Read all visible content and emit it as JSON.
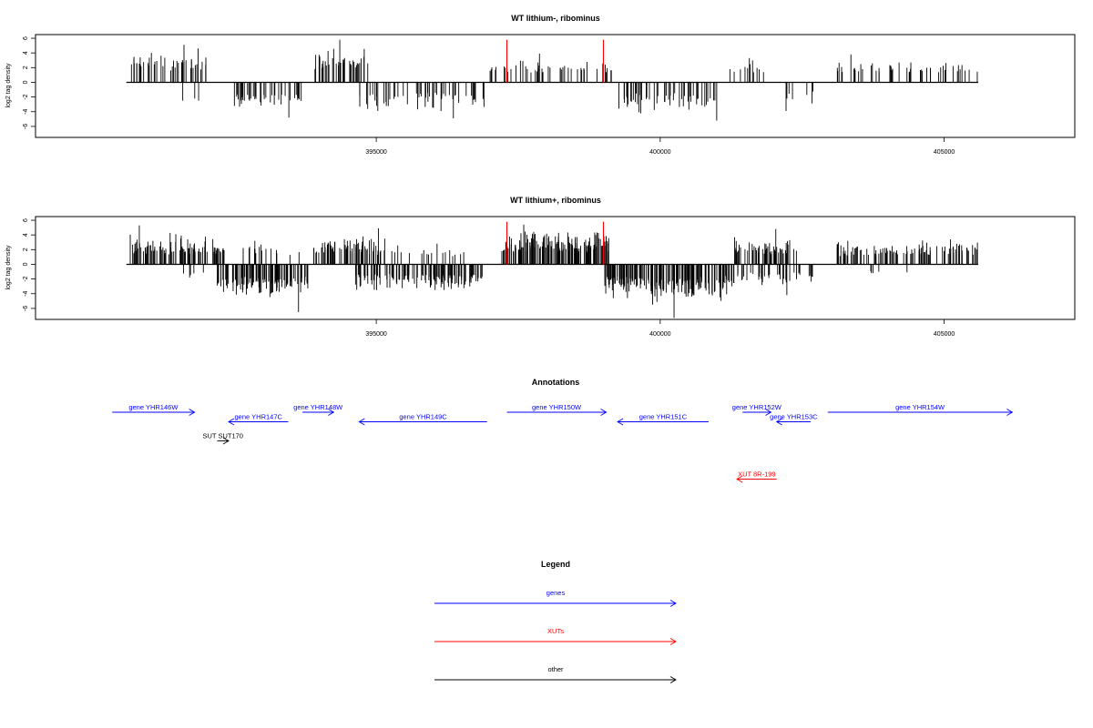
{
  "chart_data": [
    {
      "type": "bar",
      "title": "WT lithium-, ribominus",
      "ylabel": "log2 tag density",
      "ylim": [
        -7.5,
        6.5
      ],
      "xlim": [
        389000,
        407300
      ],
      "y_ticks": [
        "6",
        "4",
        "2",
        "0",
        "-2",
        "-4",
        "-6"
      ],
      "x_ticks": [
        "395000",
        "400000",
        "405000"
      ],
      "baseline_range": [
        390600,
        405600
      ],
      "colors": {
        "bars": "#000000",
        "markers": "#ff0000"
      },
      "markers": [
        397300,
        399000
      ],
      "marker_height": 5.8,
      "segments": [
        {
          "from": 390650,
          "to": 392000,
          "n": 45,
          "amp": 3.2,
          "dir": 1,
          "max": 5.1
        },
        {
          "from": 391400,
          "to": 391900,
          "n": 3,
          "amp": 2.2,
          "dir": -1,
          "max": 2.5
        },
        {
          "from": 392500,
          "to": 393700,
          "n": 42,
          "amp": 2.6,
          "dir": -1,
          "max": 4.8
        },
        {
          "from": 393900,
          "to": 394850,
          "n": 40,
          "amp": 3.2,
          "dir": 1,
          "max": 5.8
        },
        {
          "from": 394700,
          "to": 396900,
          "n": 55,
          "amp": 2.6,
          "dir": -1,
          "max": 4.9
        },
        {
          "from": 396900,
          "to": 399200,
          "n": 48,
          "amp": 2.2,
          "dir": 1,
          "max": 3.9
        },
        {
          "from": 399200,
          "to": 401000,
          "n": 55,
          "amp": 3.0,
          "dir": -1,
          "max": 5.2
        },
        {
          "from": 401200,
          "to": 402000,
          "n": 12,
          "amp": 2.2,
          "dir": 1,
          "max": 3.3
        },
        {
          "from": 402000,
          "to": 402700,
          "n": 7,
          "amp": 2.2,
          "dir": -1,
          "max": 3.9
        },
        {
          "from": 403100,
          "to": 405600,
          "n": 48,
          "amp": 2.2,
          "dir": 1,
          "max": 3.8
        }
      ]
    },
    {
      "type": "bar",
      "title": "WT lithium+, ribominus",
      "ylabel": "log2 tag density",
      "ylim": [
        -7.5,
        6.5
      ],
      "xlim": [
        389000,
        407300
      ],
      "y_ticks": [
        "6",
        "4",
        "2",
        "0",
        "-2",
        "-4",
        "-6"
      ],
      "x_ticks": [
        "395000",
        "400000",
        "405000"
      ],
      "baseline_range": [
        390600,
        405600
      ],
      "colors": {
        "bars": "#000000",
        "markers": "#ff0000"
      },
      "markers": [
        397300,
        399000
      ],
      "marker_height": 5.8,
      "segments": [
        {
          "from": 390650,
          "to": 392400,
          "n": 95,
          "amp": 2.6,
          "dir": 1,
          "max": 5.3
        },
        {
          "from": 391600,
          "to": 392100,
          "n": 5,
          "amp": 1.2,
          "dir": -1,
          "max": 1.8
        },
        {
          "from": 392200,
          "to": 393800,
          "n": 110,
          "amp": 3.0,
          "dir": -1,
          "max": 6.5
        },
        {
          "from": 392600,
          "to": 393700,
          "n": 18,
          "amp": 2.0,
          "dir": 1,
          "max": 3.2
        },
        {
          "from": 393900,
          "to": 395100,
          "n": 70,
          "amp": 2.7,
          "dir": 1,
          "max": 4.9
        },
        {
          "from": 394600,
          "to": 396900,
          "n": 130,
          "amp": 2.4,
          "dir": -1,
          "max": 3.5
        },
        {
          "from": 394800,
          "to": 396600,
          "n": 25,
          "amp": 1.8,
          "dir": 1,
          "max": 3.5
        },
        {
          "from": 397200,
          "to": 399100,
          "n": 160,
          "amp": 3.2,
          "dir": 1,
          "max": 5.4
        },
        {
          "from": 399000,
          "to": 401300,
          "n": 190,
          "amp": 3.3,
          "dir": -1,
          "max": 7.3
        },
        {
          "from": 401300,
          "to": 402400,
          "n": 60,
          "amp": 2.3,
          "dir": 1,
          "max": 4.8
        },
        {
          "from": 401300,
          "to": 402700,
          "n": 40,
          "amp": 1.8,
          "dir": -1,
          "max": 4.2
        },
        {
          "from": 403100,
          "to": 405600,
          "n": 110,
          "amp": 2.0,
          "dir": 1,
          "max": 3.4
        },
        {
          "from": 403600,
          "to": 404700,
          "n": 5,
          "amp": 0.8,
          "dir": -1,
          "max": 1.2
        }
      ]
    }
  ],
  "annotations": {
    "title": "Annotations",
    "items": [
      {
        "label": "gene YHR146W",
        "from": 390350,
        "to": 391800,
        "dir": "right",
        "row": 0,
        "color": "#0000ff"
      },
      {
        "label": "gene YHR147C",
        "from": 392400,
        "to": 393450,
        "dir": "left",
        "row": 1,
        "color": "#0000ff"
      },
      {
        "label": "gene YHR148W",
        "from": 393700,
        "to": 394250,
        "dir": "right",
        "row": 0,
        "color": "#0000ff"
      },
      {
        "label": "gene YHR149C",
        "from": 394700,
        "to": 396950,
        "dir": "left",
        "row": 1,
        "color": "#0000ff"
      },
      {
        "label": "gene YHR150W",
        "from": 397300,
        "to": 399050,
        "dir": "right",
        "row": 0,
        "color": "#0000ff"
      },
      {
        "label": "gene YHR151C",
        "from": 399250,
        "to": 400850,
        "dir": "left",
        "row": 1,
        "color": "#0000ff"
      },
      {
        "label": "gene YHR152W",
        "from": 401450,
        "to": 401950,
        "dir": "right",
        "row": 0,
        "color": "#0000ff"
      },
      {
        "label": "gene YHR153C",
        "from": 402050,
        "to": 402650,
        "dir": "left",
        "row": 1,
        "color": "#0000ff"
      },
      {
        "label": "gene YHR154W",
        "from": 402950,
        "to": 406200,
        "dir": "right",
        "row": 0,
        "color": "#0000ff"
      },
      {
        "label": "SUT SUT170",
        "from": 392200,
        "to": 392400,
        "dir": "right",
        "row": 3,
        "color": "#000000"
      },
      {
        "label": "XUT 8R-199",
        "from": 401350,
        "to": 402050,
        "dir": "left",
        "row": 7,
        "color": "#ff0000"
      }
    ]
  },
  "legend": {
    "title": "Legend",
    "items": [
      {
        "label": "genes",
        "color": "#0000ff"
      },
      {
        "label": "XUTs",
        "color": "#ff0000"
      },
      {
        "label": "other",
        "color": "#000000"
      }
    ]
  }
}
